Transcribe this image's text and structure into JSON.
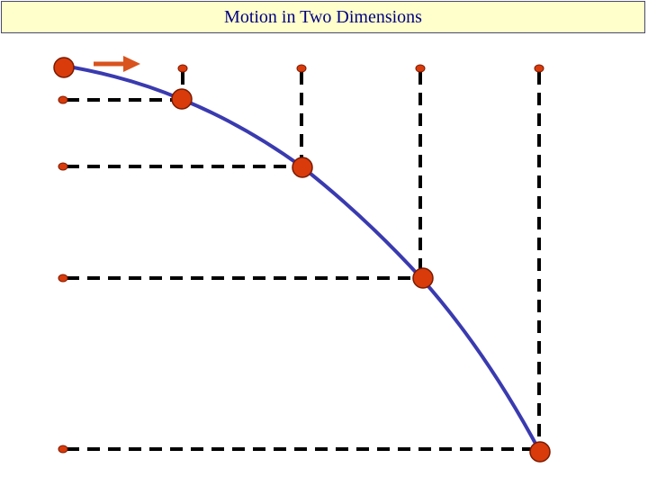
{
  "title": "Motion in Two Dimensions",
  "colors": {
    "ball": "#d93b0b",
    "ball_outline": "#7a1a00",
    "trajectory": "#3a3ab0",
    "dashed_line": "#000000",
    "velocity_arrow": "#d9531e",
    "title_background": "#ffffcc",
    "title_text": "#000080"
  },
  "icons": {
    "velocity_arrow": "arrow-right-icon"
  }
}
